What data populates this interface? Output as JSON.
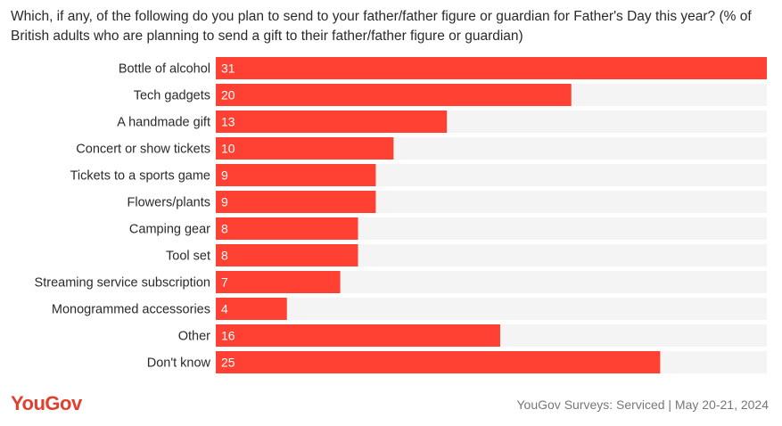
{
  "title": "Which, if any, of the following do you plan to send to your father/father figure or guardian for Father's Day this year? (% of British adults who are planning to send a gift to their father/father figure or guardian)",
  "footer": {
    "logo": "YouGov",
    "source": "YouGov Surveys: Serviced | May 20-21, 2024"
  },
  "colors": {
    "bar": "#ff4133",
    "track": "#f4f4f4",
    "value_text": "#ffffff"
  },
  "chart_data": {
    "type": "bar",
    "orientation": "horizontal",
    "categories": [
      "Bottle of alcohol",
      "Tech gadgets",
      "A handmade gift",
      "Concert or show tickets",
      "Tickets to a sports game",
      "Flowers/plants",
      "Camping gear",
      "Tool set",
      "Streaming service subscription",
      "Monogrammed accessories",
      "Other",
      "Don't know"
    ],
    "values": [
      31,
      20,
      13,
      10,
      9,
      9,
      8,
      8,
      7,
      4,
      16,
      25
    ],
    "xlim": [
      0,
      31
    ],
    "grid": false,
    "legend": "none"
  }
}
